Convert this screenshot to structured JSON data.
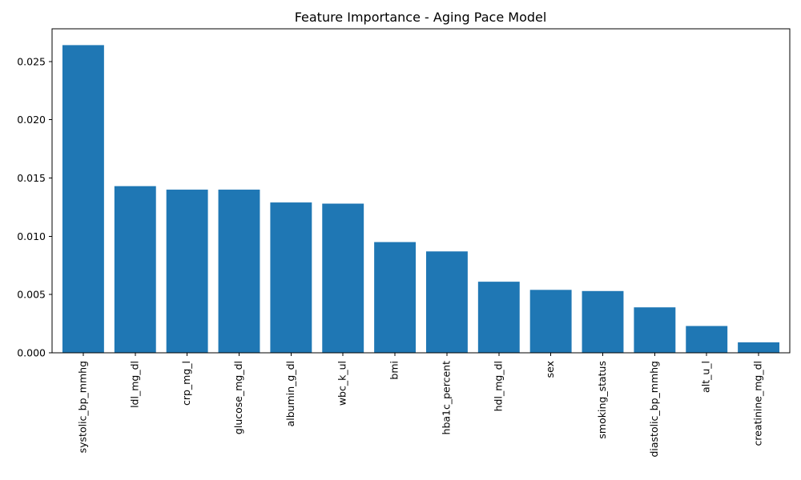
{
  "chart_data": {
    "type": "bar",
    "title": "Feature Importance - Aging Pace Model",
    "xlabel": "",
    "ylabel": "",
    "categories": [
      "systolic_bp_mmhg",
      "ldl_mg_dl",
      "crp_mg_l",
      "glucose_mg_dl",
      "albumin_g_dl",
      "wbc_k_ul",
      "bmi",
      "hba1c_percent",
      "hdl_mg_dl",
      "sex",
      "smoking_status",
      "diastolic_bp_mmhg",
      "alt_u_l",
      "creatinine_mg_dl"
    ],
    "values": [
      0.0264,
      0.0143,
      0.014,
      0.014,
      0.0129,
      0.0128,
      0.0095,
      0.0087,
      0.0061,
      0.0054,
      0.0053,
      0.0039,
      0.0023,
      0.0009
    ],
    "ylim": [
      0,
      0.0278
    ],
    "yticks": [
      "0.000",
      "0.005",
      "0.010",
      "0.015",
      "0.020",
      "0.025"
    ],
    "bar_color": "#1f77b4",
    "grid": false,
    "legend": "none"
  }
}
